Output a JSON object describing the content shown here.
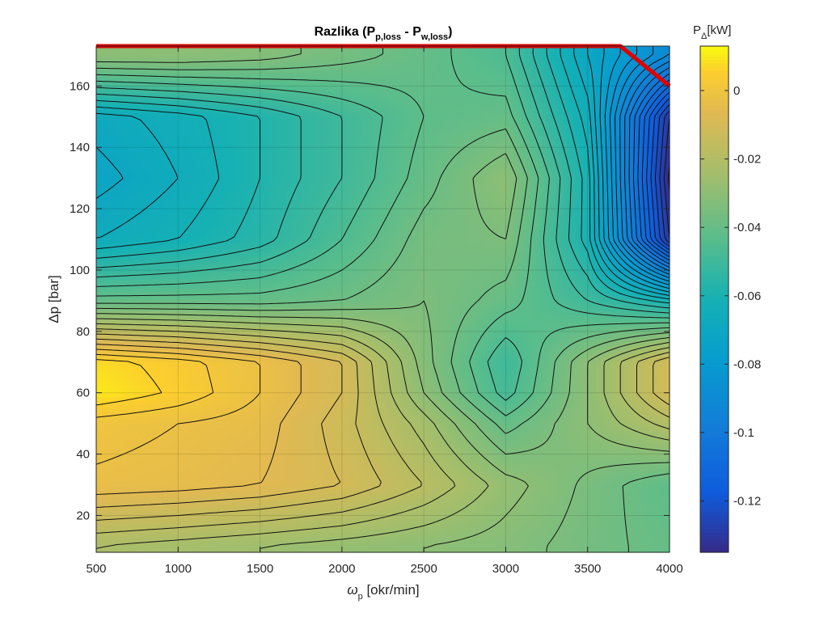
{
  "chart_data": {
    "type": "heatmap",
    "title": {
      "main": "Razlika (P",
      "sub1": "p,loss",
      "mid": " - P",
      "sub2": "w,loss",
      "end": ")"
    },
    "xlabel": {
      "symbol": "ω",
      "sub": "p",
      "rest": " [okr/min]"
    },
    "ylabel": "Δp  [bar]",
    "colorbar_label": {
      "main": "P",
      "sub": "Δ",
      "rest": "[kW]"
    },
    "xlim": [
      500,
      4000
    ],
    "ylim": [
      8,
      173
    ],
    "clim": [
      -0.135,
      0.013
    ],
    "x_ticks": [
      500,
      1000,
      1500,
      2000,
      2500,
      3000,
      3500,
      4000
    ],
    "y_ticks": [
      20,
      40,
      60,
      80,
      100,
      120,
      140,
      160
    ],
    "colorbar_ticks": [
      0,
      -0.02,
      -0.04,
      -0.06,
      -0.08,
      -0.1,
      -0.12
    ],
    "colorbar_tick_labels": [
      "0",
      "-0.02",
      "-0.04",
      "-0.06",
      "-0.08",
      "-0.1",
      "-0.12"
    ],
    "grid": true,
    "x": [
      500,
      1000,
      1500,
      2000,
      2500,
      3000,
      3500,
      4000
    ],
    "y": [
      10,
      30,
      50,
      60,
      70,
      90,
      110,
      130,
      150,
      170
    ],
    "z": [
      [
        -0.022,
        -0.024,
        -0.026,
        -0.028,
        -0.03,
        -0.032,
        -0.036,
        -0.04
      ],
      [
        -0.003,
        -0.004,
        -0.006,
        -0.01,
        -0.018,
        -0.028,
        -0.035,
        -0.042
      ],
      [
        0.0,
        -0.002,
        -0.004,
        -0.012,
        -0.024,
        -0.04,
        -0.03,
        -0.02
      ],
      [
        0.01,
        0.005,
        -0.002,
        -0.01,
        -0.03,
        -0.048,
        -0.03,
        -0.01
      ],
      [
        0.008,
        0.004,
        -0.002,
        -0.01,
        -0.032,
        -0.05,
        -0.03,
        -0.01
      ],
      [
        -0.04,
        -0.04,
        -0.04,
        -0.038,
        -0.034,
        -0.04,
        -0.05,
        -0.06
      ],
      [
        -0.066,
        -0.062,
        -0.056,
        -0.046,
        -0.036,
        -0.034,
        -0.06,
        -0.13
      ],
      [
        -0.072,
        -0.066,
        -0.058,
        -0.05,
        -0.04,
        -0.03,
        -0.06,
        -0.135
      ],
      [
        -0.068,
        -0.064,
        -0.058,
        -0.05,
        -0.042,
        -0.04,
        -0.064,
        -0.13
      ],
      [
        -0.03,
        -0.03,
        -0.032,
        -0.036,
        -0.04,
        -0.046,
        -0.07,
        -0.09
      ]
    ],
    "max_pressure_line": {
      "x": [
        500,
        3700,
        4000
      ],
      "y": [
        173,
        173,
        160
      ],
      "color": "#e00000"
    }
  }
}
